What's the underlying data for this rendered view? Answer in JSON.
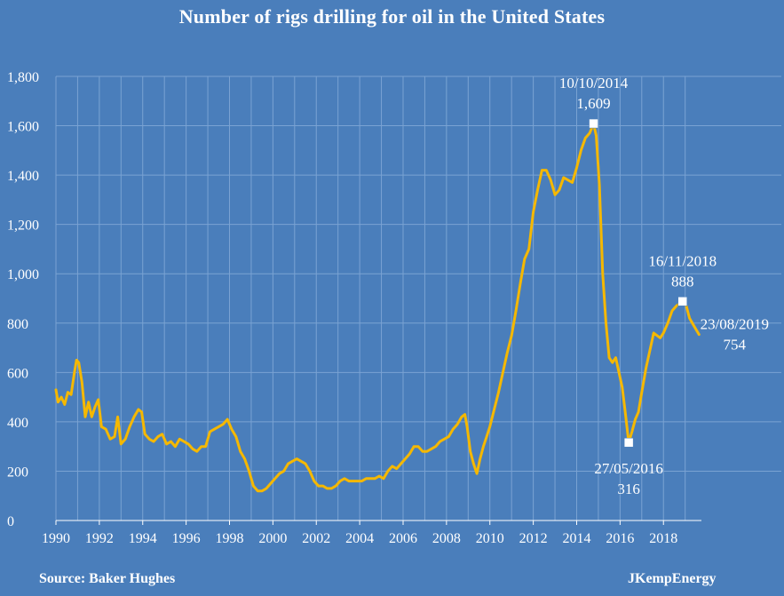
{
  "title": "Number of rigs drilling for oil in the United States",
  "source": "Source: Baker Hughes",
  "brand": "JKempEnergy",
  "colors": {
    "background": "#4a7ebb",
    "line": "#f5b800",
    "grid": "#7aa3d3",
    "text": "#ffffff"
  },
  "chart_data": {
    "type": "line",
    "title": "Number of rigs drilling for oil in the United States",
    "xlabel": "",
    "ylabel": "",
    "xlim": [
      1990,
      2019.75
    ],
    "ylim": [
      0,
      1800
    ],
    "y_ticks": [
      0,
      200,
      400,
      600,
      800,
      1000,
      1200,
      1400,
      1600,
      1800
    ],
    "y_tick_labels": [
      "0",
      "200",
      "400",
      "600",
      "800",
      "1,000",
      "1,200",
      "1,400",
      "1,600",
      "1,800"
    ],
    "x_ticks": [
      1990,
      1992,
      1994,
      1996,
      1998,
      2000,
      2002,
      2004,
      2006,
      2008,
      2010,
      2012,
      2014,
      2016,
      2018
    ],
    "grid": true,
    "series": [
      {
        "color": "#f5b800",
        "points": [
          [
            1990.0,
            530
          ],
          [
            1990.1,
            480
          ],
          [
            1990.25,
            500
          ],
          [
            1990.4,
            470
          ],
          [
            1990.55,
            520
          ],
          [
            1990.7,
            510
          ],
          [
            1990.85,
            600
          ],
          [
            1990.95,
            650
          ],
          [
            1991.05,
            640
          ],
          [
            1991.2,
            560
          ],
          [
            1991.35,
            420
          ],
          [
            1991.5,
            480
          ],
          [
            1991.65,
            420
          ],
          [
            1991.8,
            460
          ],
          [
            1991.95,
            490
          ],
          [
            1992.1,
            380
          ],
          [
            1992.3,
            370
          ],
          [
            1992.5,
            330
          ],
          [
            1992.7,
            340
          ],
          [
            1992.85,
            420
          ],
          [
            1993.0,
            310
          ],
          [
            1993.2,
            330
          ],
          [
            1993.4,
            380
          ],
          [
            1993.6,
            420
          ],
          [
            1993.8,
            450
          ],
          [
            1993.95,
            440
          ],
          [
            1994.1,
            350
          ],
          [
            1994.3,
            330
          ],
          [
            1994.5,
            320
          ],
          [
            1994.7,
            340
          ],
          [
            1994.9,
            350
          ],
          [
            1995.1,
            310
          ],
          [
            1995.3,
            320
          ],
          [
            1995.5,
            300
          ],
          [
            1995.7,
            330
          ],
          [
            1995.9,
            320
          ],
          [
            1996.1,
            310
          ],
          [
            1996.3,
            290
          ],
          [
            1996.5,
            280
          ],
          [
            1996.7,
            300
          ],
          [
            1996.9,
            300
          ],
          [
            1997.1,
            360
          ],
          [
            1997.3,
            370
          ],
          [
            1997.5,
            380
          ],
          [
            1997.7,
            390
          ],
          [
            1997.9,
            410
          ],
          [
            1998.1,
            370
          ],
          [
            1998.3,
            340
          ],
          [
            1998.5,
            280
          ],
          [
            1998.7,
            250
          ],
          [
            1998.9,
            200
          ],
          [
            1999.1,
            140
          ],
          [
            1999.3,
            120
          ],
          [
            1999.5,
            120
          ],
          [
            1999.7,
            130
          ],
          [
            1999.9,
            150
          ],
          [
            2000.1,
            170
          ],
          [
            2000.3,
            190
          ],
          [
            2000.5,
            200
          ],
          [
            2000.7,
            230
          ],
          [
            2000.9,
            240
          ],
          [
            2001.1,
            250
          ],
          [
            2001.3,
            240
          ],
          [
            2001.5,
            230
          ],
          [
            2001.7,
            200
          ],
          [
            2001.9,
            160
          ],
          [
            2002.1,
            140
          ],
          [
            2002.3,
            140
          ],
          [
            2002.5,
            130
          ],
          [
            2002.7,
            130
          ],
          [
            2002.9,
            140
          ],
          [
            2003.1,
            160
          ],
          [
            2003.3,
            170
          ],
          [
            2003.5,
            160
          ],
          [
            2003.7,
            160
          ],
          [
            2003.9,
            160
          ],
          [
            2004.1,
            160
          ],
          [
            2004.3,
            170
          ],
          [
            2004.5,
            170
          ],
          [
            2004.7,
            170
          ],
          [
            2004.9,
            180
          ],
          [
            2005.1,
            170
          ],
          [
            2005.3,
            200
          ],
          [
            2005.5,
            220
          ],
          [
            2005.7,
            210
          ],
          [
            2005.9,
            230
          ],
          [
            2006.1,
            250
          ],
          [
            2006.3,
            270
          ],
          [
            2006.5,
            300
          ],
          [
            2006.7,
            300
          ],
          [
            2006.9,
            280
          ],
          [
            2007.1,
            280
          ],
          [
            2007.3,
            290
          ],
          [
            2007.5,
            300
          ],
          [
            2007.7,
            320
          ],
          [
            2007.9,
            330
          ],
          [
            2008.1,
            340
          ],
          [
            2008.3,
            370
          ],
          [
            2008.5,
            390
          ],
          [
            2008.7,
            420
          ],
          [
            2008.85,
            430
          ],
          [
            2008.95,
            380
          ],
          [
            2009.1,
            280
          ],
          [
            2009.25,
            230
          ],
          [
            2009.4,
            190
          ],
          [
            2009.55,
            250
          ],
          [
            2009.7,
            300
          ],
          [
            2009.85,
            340
          ],
          [
            2010.0,
            380
          ],
          [
            2010.2,
            450
          ],
          [
            2010.4,
            520
          ],
          [
            2010.6,
            600
          ],
          [
            2010.8,
            680
          ],
          [
            2011.0,
            750
          ],
          [
            2011.2,
            850
          ],
          [
            2011.4,
            960
          ],
          [
            2011.6,
            1060
          ],
          [
            2011.8,
            1100
          ],
          [
            2012.0,
            1250
          ],
          [
            2012.2,
            1340
          ],
          [
            2012.4,
            1420
          ],
          [
            2012.6,
            1420
          ],
          [
            2012.8,
            1380
          ],
          [
            2013.0,
            1320
          ],
          [
            2013.2,
            1340
          ],
          [
            2013.4,
            1390
          ],
          [
            2013.6,
            1380
          ],
          [
            2013.8,
            1370
          ],
          [
            2014.0,
            1430
          ],
          [
            2014.2,
            1500
          ],
          [
            2014.4,
            1550
          ],
          [
            2014.6,
            1570
          ],
          [
            2014.78,
            1609
          ],
          [
            2014.9,
            1560
          ],
          [
            2015.05,
            1360
          ],
          [
            2015.2,
            1000
          ],
          [
            2015.35,
            800
          ],
          [
            2015.5,
            660
          ],
          [
            2015.65,
            640
          ],
          [
            2015.8,
            660
          ],
          [
            2015.95,
            600
          ],
          [
            2016.1,
            540
          ],
          [
            2016.25,
            430
          ],
          [
            2016.4,
            316
          ],
          [
            2016.55,
            360
          ],
          [
            2016.7,
            410
          ],
          [
            2016.85,
            440
          ],
          [
            2017.0,
            520
          ],
          [
            2017.2,
            620
          ],
          [
            2017.4,
            700
          ],
          [
            2017.55,
            760
          ],
          [
            2017.7,
            750
          ],
          [
            2017.85,
            740
          ],
          [
            2018.0,
            760
          ],
          [
            2018.2,
            800
          ],
          [
            2018.4,
            850
          ],
          [
            2018.6,
            870
          ],
          [
            2018.88,
            888
          ],
          [
            2019.05,
            870
          ],
          [
            2019.2,
            820
          ],
          [
            2019.4,
            790
          ],
          [
            2019.64,
            754
          ]
        ]
      }
    ],
    "annotations": [
      {
        "x": 2014.78,
        "y": 1609,
        "date": "10/10/2014",
        "value": "1,609",
        "position": "above"
      },
      {
        "x": 2016.4,
        "y": 316,
        "date": "27/05/2016",
        "value": "316",
        "position": "below"
      },
      {
        "x": 2018.88,
        "y": 888,
        "date": "16/11/2018",
        "value": "888",
        "position": "above"
      },
      {
        "x": 2019.64,
        "y": 754,
        "date": "23/08/2019",
        "value": "754",
        "position": "right"
      }
    ]
  }
}
